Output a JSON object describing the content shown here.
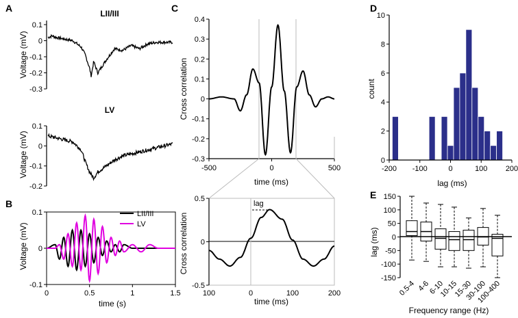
{
  "panels": {
    "A": {
      "letter": "A",
      "top_title": "LII/III",
      "bottom_title": "LV",
      "top_ylabel": "Voltage (mV)",
      "bottom_ylabel": "Voltage (mV)",
      "top_yticks": [
        "0.1",
        "0",
        "-0.1",
        "-0.2",
        "-0.3"
      ],
      "bottom_yticks": [
        "0.1",
        "0",
        "-0.1",
        "-0.2"
      ]
    },
    "B": {
      "letter": "B",
      "ylabel": "Voltage (mV)",
      "xlabel": "time (s)",
      "yticks": [
        "0.1",
        "0",
        "-0.1"
      ],
      "xticks": [
        "0",
        "0.5",
        "1",
        "1.5"
      ],
      "legend": [
        "LII/III",
        "LV"
      ]
    },
    "C": {
      "letter": "C",
      "top_ylabel": "Cross correlation",
      "top_xlabel": "time (ms)",
      "top_yticks": [
        "0.4",
        "0.3",
        "0.2",
        "0.1",
        "0",
        "-0.1",
        "-0.2",
        "-0.3"
      ],
      "top_xticks": [
        "-500",
        "0",
        "500"
      ],
      "bottom_ylabel": "Cross correlation",
      "bottom_xlabel": "time (ms)",
      "bottom_yticks": [
        "0.5",
        "0",
        "-0.5"
      ],
      "bottom_xticks": [
        "100",
        "0",
        "100",
        "200"
      ],
      "lag_label": "lag"
    },
    "D": {
      "letter": "D",
      "ylabel": "count",
      "xlabel": "lag (ms)",
      "yticks": [
        "10",
        "8",
        "6",
        "4",
        "2",
        "0"
      ],
      "xticks": [
        "-200",
        "-100",
        "0",
        "100",
        "200"
      ]
    },
    "E": {
      "letter": "E",
      "ylabel": "lag (ms)",
      "xlabel": "Frequency range (Hz)",
      "yticks": [
        "150",
        "100",
        "50",
        "0",
        "-50",
        "-100",
        "-150"
      ],
      "categories": [
        "0.5-4",
        "4-6",
        "6-10",
        "10-15",
        "15-30",
        "30-100",
        "100-400"
      ]
    }
  },
  "colors": {
    "line": "#000000",
    "lv": "#e000e0",
    "bar": "#2b2f8a",
    "grid": "#bbbbbb"
  },
  "chart_data": [
    {
      "type": "line",
      "panel": "A-top",
      "title": "LII/III",
      "ylabel": "Voltage (mV)",
      "ylim": [
        -0.3,
        0.1
      ],
      "x": [
        0,
        0.05,
        0.1,
        0.2,
        0.3,
        0.4,
        0.45,
        0.5,
        0.52,
        0.55,
        0.6,
        0.7,
        0.8,
        0.9,
        1.0,
        1.1,
        1.2,
        1.3,
        1.4,
        1.5
      ],
      "series": [
        {
          "values": [
            0.02,
            0.03,
            0.02,
            0.01,
            0.0,
            -0.04,
            -0.09,
            -0.17,
            -0.22,
            -0.13,
            -0.2,
            -0.12,
            -0.05,
            -0.06,
            -0.03,
            -0.05,
            -0.02,
            -0.01,
            -0.01,
            -0.01
          ]
        }
      ]
    },
    {
      "type": "line",
      "panel": "A-bottom",
      "title": "LV",
      "ylabel": "Voltage (mV)",
      "ylim": [
        -0.2,
        0.1
      ],
      "x": [
        0,
        0.1,
        0.2,
        0.3,
        0.4,
        0.45,
        0.5,
        0.55,
        0.6,
        0.7,
        0.8,
        0.9,
        1.0,
        1.1,
        1.2,
        1.3,
        1.4,
        1.5
      ],
      "series": [
        {
          "values": [
            0.05,
            0.04,
            0.03,
            0.02,
            -0.02,
            -0.08,
            -0.13,
            -0.16,
            -0.13,
            -0.1,
            -0.07,
            -0.05,
            -0.04,
            -0.03,
            -0.02,
            -0.01,
            0.0,
            0.01
          ]
        }
      ]
    },
    {
      "type": "line",
      "panel": "B",
      "xlabel": "time (s)",
      "ylabel": "Voltage (mV)",
      "xlim": [
        0,
        1.5
      ],
      "ylim": [
        -0.1,
        0.1
      ],
      "x": [
        0,
        0.1,
        0.15,
        0.2,
        0.25,
        0.3,
        0.35,
        0.4,
        0.45,
        0.5,
        0.55,
        0.6,
        0.65,
        0.7,
        0.75,
        0.8,
        0.85,
        0.9,
        1.0,
        1.1,
        1.2,
        1.3,
        1.4,
        1.5
      ],
      "series": [
        {
          "name": "LII/III",
          "values": [
            0,
            0.01,
            -0.03,
            0.03,
            -0.05,
            0.05,
            -0.06,
            0.05,
            -0.05,
            0.04,
            -0.04,
            0.03,
            -0.02,
            0.02,
            -0.01,
            0.01,
            -0.01,
            0.01,
            0.0,
            0.0,
            0.0,
            0.0,
            0.0,
            0.0
          ]
        },
        {
          "name": "LV",
          "values": [
            0,
            0.0,
            0.01,
            -0.03,
            0.04,
            -0.05,
            0.07,
            -0.06,
            0.09,
            -0.09,
            0.08,
            -0.07,
            0.06,
            -0.04,
            0.03,
            -0.02,
            0.02,
            -0.01,
            0.01,
            -0.01,
            0.01,
            0.0,
            0.0,
            0.0
          ]
        }
      ]
    },
    {
      "type": "line",
      "panel": "C-top",
      "xlabel": "time (ms)",
      "ylabel": "Cross correlation",
      "xlim": [
        -500,
        500
      ],
      "ylim": [
        -0.3,
        0.4
      ],
      "x": [
        -500,
        -400,
        -300,
        -250,
        -200,
        -150,
        -100,
        -50,
        0,
        50,
        100,
        150,
        200,
        250,
        300,
        350,
        400,
        450,
        500
      ],
      "series": [
        {
          "values": [
            0.0,
            0.01,
            0.0,
            -0.06,
            0.02,
            0.15,
            0.08,
            -0.28,
            0.06,
            0.37,
            0.04,
            -0.27,
            0.06,
            0.14,
            0.02,
            -0.04,
            0.0,
            0.01,
            0.0
          ]
        }
      ]
    },
    {
      "type": "line",
      "panel": "C-bottom",
      "xlabel": "time (ms)",
      "ylabel": "Cross correlation",
      "xlim": [
        -100,
        200
      ],
      "ylim": [
        -0.5,
        0.5
      ],
      "x": [
        -100,
        -75,
        -50,
        -25,
        0,
        25,
        45,
        75,
        100,
        125,
        150,
        175,
        200
      ],
      "series": [
        {
          "values": [
            -0.1,
            -0.2,
            -0.28,
            -0.18,
            0.04,
            0.28,
            0.37,
            0.26,
            0.02,
            -0.2,
            -0.28,
            -0.2,
            -0.05
          ]
        }
      ]
    },
    {
      "type": "bar",
      "panel": "D",
      "xlabel": "lag (ms)",
      "ylabel": "count",
      "xlim": [
        -200,
        200
      ],
      "ylim": [
        0,
        10
      ],
      "bin_width": 20,
      "bin_starts": [
        -190,
        -170,
        -150,
        -130,
        -110,
        -90,
        -70,
        -50,
        -30,
        -10,
        10,
        30,
        50,
        70,
        90,
        110,
        130,
        150
      ],
      "values": [
        3,
        0,
        0,
        0,
        0,
        0,
        3,
        0,
        3,
        1,
        5,
        6,
        9,
        5,
        3,
        2,
        1,
        2
      ]
    },
    {
      "type": "box",
      "panel": "E",
      "xlabel": "Frequency range (Hz)",
      "ylabel": "lag (ms)",
      "ylim": [
        -150,
        150
      ],
      "categories": [
        "0.5-4",
        "4-6",
        "6-10",
        "10-15",
        "15-30",
        "30-100",
        "100-400"
      ],
      "series": [
        {
          "whisker_low": -85,
          "q1": 5,
          "median": 20,
          "q3": 60,
          "whisker_high": 150
        },
        {
          "whisker_low": -90,
          "q1": -15,
          "median": 20,
          "q3": 55,
          "whisker_high": 125
        },
        {
          "whisker_low": -110,
          "q1": -45,
          "median": -5,
          "q3": 30,
          "whisker_high": 120
        },
        {
          "whisker_low": -110,
          "q1": -50,
          "median": -10,
          "q3": 20,
          "whisker_high": 110
        },
        {
          "whisker_low": -115,
          "q1": -50,
          "median": -10,
          "q3": 25,
          "whisker_high": 70
        },
        {
          "whisker_low": -110,
          "q1": -30,
          "median": 0,
          "q3": 35,
          "whisker_high": 105
        },
        {
          "whisker_low": -150,
          "q1": -70,
          "median": -5,
          "q3": 10,
          "whisker_high": 80
        }
      ]
    }
  ]
}
